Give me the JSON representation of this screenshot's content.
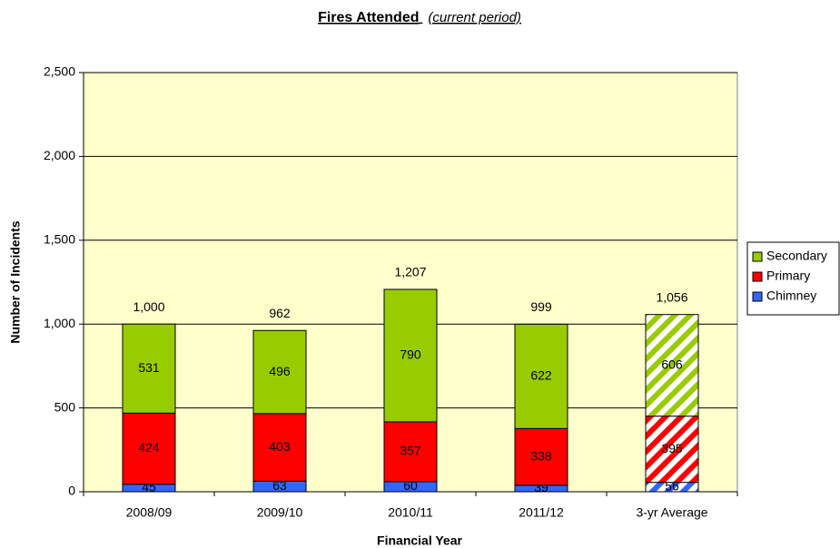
{
  "chart_data": {
    "type": "stacked_bar",
    "title": "Fires Attended",
    "title_note": "(current period)",
    "x_label": "Financial Year",
    "y_label": "Number of Incidents",
    "categories": [
      "2008/09",
      "2009/10",
      "2010/11",
      "2011/12",
      "3-yr Average"
    ],
    "series": [
      {
        "name": "Chimney",
        "color": "#3366ff",
        "values": [
          45,
          63,
          60,
          39,
          56
        ]
      },
      {
        "name": "Primary",
        "color": "#ff0000",
        "values": [
          424,
          403,
          357,
          338,
          395
        ]
      },
      {
        "name": "Secondary",
        "color": "#99cc00",
        "values": [
          531,
          496,
          790,
          622,
          606
        ]
      }
    ],
    "totals": [
      1000,
      962,
      1207,
      999,
      1056
    ],
    "total_labels": [
      "1,000",
      "962",
      "1,207",
      "999",
      "1,056"
    ],
    "hatched": [
      false,
      false,
      false,
      false,
      true
    ],
    "ylim": [
      0,
      2500
    ],
    "yticks": [
      0,
      500,
      {
        "value": 1000,
        "label": "1,000"
      },
      {
        "value": 1500,
        "label": "1,500"
      },
      {
        "value": 2000,
        "label": "2,000"
      },
      {
        "value": 2500,
        "label": "2,500"
      }
    ],
    "grid": true,
    "legend": "right",
    "plot_background": "#ffffcc"
  }
}
